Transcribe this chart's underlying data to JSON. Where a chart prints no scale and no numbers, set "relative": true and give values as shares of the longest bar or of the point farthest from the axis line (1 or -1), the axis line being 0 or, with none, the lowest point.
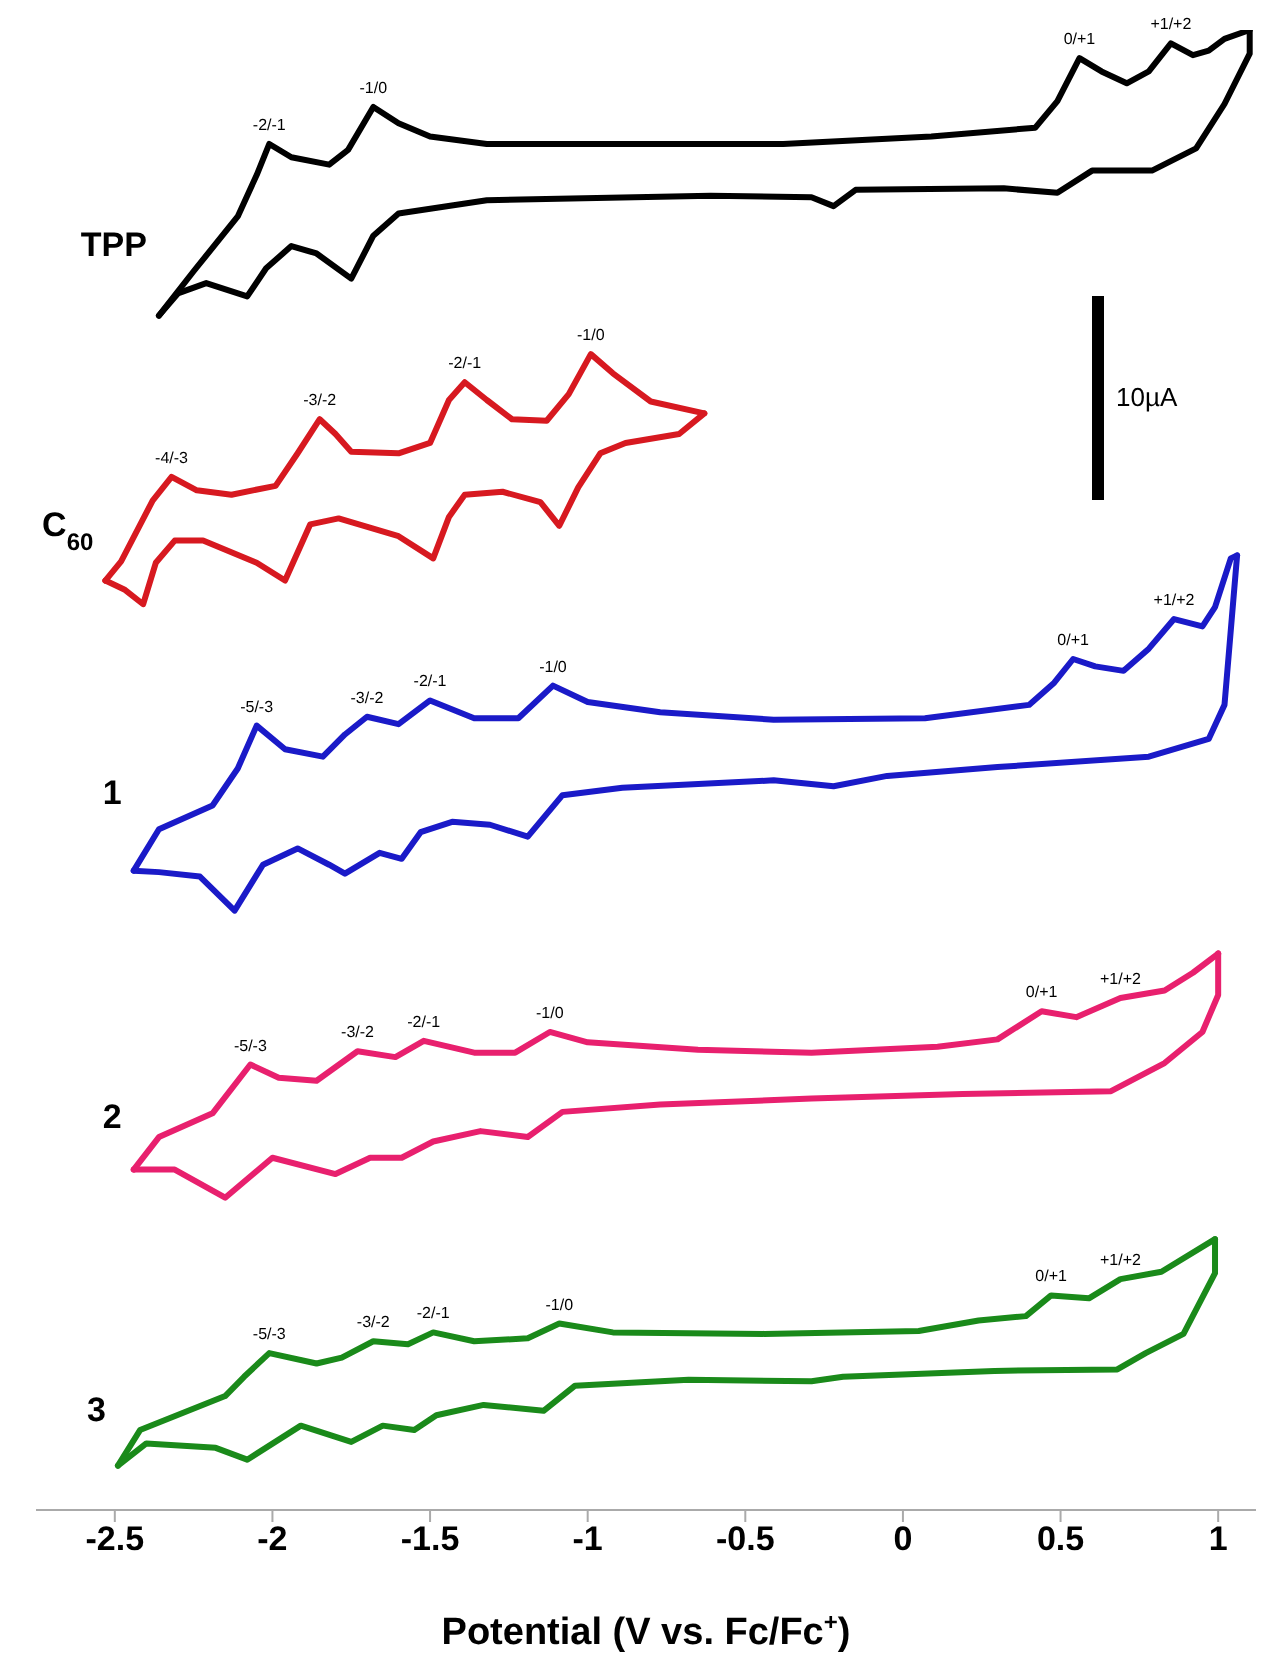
{
  "chart_data": {
    "type": "line",
    "xlabel": "Potential (V vs. Fc/Fc$^{+}$)",
    "relative": true,
    "xlim": [
      -2.75,
      1.12
    ],
    "xticks": [
      -2.5,
      -2,
      -1.5,
      -1,
      -0.5,
      0,
      0.5,
      1
    ],
    "grid": false,
    "legend": false,
    "marker": "none",
    "line_style": "solid",
    "series": [
      {
        "name": "TPP",
        "color": "#000000",
        "x": [
          -2.36,
          -2.25,
          -2.11,
          -2.05,
          -2.01,
          -1.94,
          -1.82,
          -1.76,
          -1.68,
          -1.6,
          -1.5,
          -1.32,
          -0.85,
          -0.38,
          0.09,
          0.42,
          0.49,
          0.56,
          0.63,
          0.71,
          0.78,
          0.85,
          0.92,
          0.97,
          1.02,
          1.1
        ],
        "values": [
          0.807,
          0.837,
          0.874,
          0.902,
          0.923,
          0.914,
          0.909,
          0.919,
          0.948,
          0.937,
          0.928,
          0.923,
          0.923,
          0.923,
          0.928,
          0.934,
          0.952,
          0.981,
          0.972,
          0.964,
          0.972,
          0.991,
          0.983,
          0.986,
          0.994,
          1.0
        ]
      },
      {
        "color": "#000000",
        "x": [
          1.1,
          1.1,
          1.02,
          0.93,
          0.79,
          0.6,
          0.49,
          0.32,
          -0.15,
          -0.22,
          -0.29,
          -0.61,
          -1.32,
          -1.6,
          -1.68,
          -1.75,
          -1.86,
          -1.94,
          -2.02,
          -2.08,
          -2.21,
          -2.3,
          -2.36
        ],
        "values": [
          1.0,
          0.984,
          0.95,
          0.92,
          0.905,
          0.905,
          0.89,
          0.893,
          0.892,
          0.881,
          0.887,
          0.888,
          0.885,
          0.876,
          0.861,
          0.832,
          0.849,
          0.854,
          0.839,
          0.82,
          0.829,
          0.822,
          0.807
        ]
      },
      {
        "name": "C$_{60}$",
        "color": "#d71920",
        "x": [
          -2.53,
          -2.48,
          -2.38,
          -2.32,
          -2.24,
          -2.13,
          -1.99,
          -1.92,
          -1.85,
          -1.8,
          -1.75,
          -1.6,
          -1.5,
          -1.44,
          -1.39,
          -1.32,
          -1.24,
          -1.13,
          -1.06,
          -0.99,
          -0.92,
          -0.8,
          -0.63
        ],
        "values": [
          0.628,
          0.641,
          0.682,
          0.698,
          0.689,
          0.686,
          0.692,
          0.714,
          0.737,
          0.727,
          0.715,
          0.714,
          0.721,
          0.75,
          0.762,
          0.75,
          0.737,
          0.736,
          0.754,
          0.781,
          0.768,
          0.749,
          0.741
        ]
      },
      {
        "color": "#d71920",
        "x": [
          -0.63,
          -0.71,
          -0.88,
          -0.96,
          -1.03,
          -1.09,
          -1.15,
          -1.27,
          -1.39,
          -1.44,
          -1.49,
          -1.6,
          -1.79,
          -1.88,
          -1.96,
          -2.05,
          -2.22,
          -2.31,
          -2.37,
          -2.41,
          -2.47,
          -2.53
        ],
        "values": [
          0.741,
          0.727,
          0.721,
          0.714,
          0.691,
          0.665,
          0.681,
          0.688,
          0.686,
          0.671,
          0.643,
          0.658,
          0.67,
          0.666,
          0.628,
          0.64,
          0.655,
          0.655,
          0.64,
          0.612,
          0.622,
          0.628
        ]
      },
      {
        "name": "1",
        "color": "#1a1ac8",
        "x": [
          -2.44,
          -2.36,
          -2.19,
          -2.11,
          -2.05,
          -1.96,
          -1.84,
          -1.77,
          -1.7,
          -1.6,
          -1.5,
          -1.36,
          -1.22,
          -1.11,
          -1.0,
          -0.77,
          -0.41,
          0.07,
          0.4,
          0.48,
          0.54,
          0.61,
          0.7,
          0.78,
          0.86,
          0.95,
          0.99,
          1.04,
          1.06
        ],
        "values": [
          0.432,
          0.46,
          0.476,
          0.501,
          0.53,
          0.514,
          0.509,
          0.524,
          0.536,
          0.531,
          0.547,
          0.535,
          0.535,
          0.557,
          0.546,
          0.539,
          0.534,
          0.535,
          0.544,
          0.559,
          0.575,
          0.57,
          0.567,
          0.582,
          0.602,
          0.597,
          0.61,
          0.643,
          0.645
        ]
      },
      {
        "color": "#1a1ac8",
        "x": [
          1.06,
          1.02,
          0.97,
          0.78,
          0.3,
          -0.05,
          -0.22,
          -0.41,
          -0.89,
          -1.08,
          -1.19,
          -1.31,
          -1.43,
          -1.53,
          -1.59,
          -1.66,
          -1.77,
          -1.82,
          -1.92,
          -2.03,
          -2.12,
          -2.23,
          -2.36,
          -2.44
        ],
        "values": [
          0.645,
          0.544,
          0.521,
          0.509,
          0.502,
          0.496,
          0.489,
          0.493,
          0.488,
          0.483,
          0.455,
          0.463,
          0.465,
          0.458,
          0.44,
          0.444,
          0.43,
          0.436,
          0.447,
          0.436,
          0.405,
          0.428,
          0.431,
          0.432
        ]
      },
      {
        "name": "2",
        "color": "#e8206e",
        "x": [
          -2.44,
          -2.36,
          -2.19,
          -2.07,
          -1.98,
          -1.86,
          -1.73,
          -1.61,
          -1.52,
          -1.36,
          -1.23,
          -1.12,
          -1.0,
          -0.65,
          -0.29,
          0.11,
          0.3,
          0.44,
          0.55,
          0.69,
          0.83,
          0.92,
          1.0
        ],
        "values": [
          0.23,
          0.252,
          0.268,
          0.301,
          0.292,
          0.29,
          0.31,
          0.306,
          0.317,
          0.309,
          0.309,
          0.323,
          0.316,
          0.311,
          0.309,
          0.313,
          0.318,
          0.337,
          0.333,
          0.346,
          0.351,
          0.363,
          0.376
        ]
      },
      {
        "color": "#e8206e",
        "x": [
          1.0,
          1.0,
          0.95,
          0.83,
          0.66,
          0.19,
          -0.29,
          -0.77,
          -1.08,
          -1.19,
          -1.34,
          -1.49,
          -1.59,
          -1.69,
          -1.8,
          -2.0,
          -2.15,
          -2.31,
          -2.44
        ],
        "values": [
          0.376,
          0.348,
          0.323,
          0.302,
          0.283,
          0.281,
          0.278,
          0.274,
          0.269,
          0.252,
          0.256,
          0.249,
          0.238,
          0.238,
          0.227,
          0.238,
          0.211,
          0.23,
          0.23
        ]
      },
      {
        "name": "3",
        "color": "#1a8a1a",
        "x": [
          -2.49,
          -2.42,
          -2.15,
          -2.09,
          -2.01,
          -1.86,
          -1.78,
          -1.68,
          -1.57,
          -1.49,
          -1.36,
          -1.19,
          -1.09,
          -0.92,
          -0.44,
          0.05,
          0.24,
          0.39,
          0.47,
          0.59,
          0.69,
          0.82,
          0.99
        ],
        "values": [
          0.03,
          0.054,
          0.077,
          0.09,
          0.106,
          0.099,
          0.103,
          0.114,
          0.112,
          0.12,
          0.114,
          0.116,
          0.126,
          0.12,
          0.119,
          0.121,
          0.128,
          0.131,
          0.145,
          0.143,
          0.156,
          0.161,
          0.183
        ]
      },
      {
        "color": "#1a8a1a",
        "x": [
          0.99,
          0.99,
          0.89,
          0.77,
          0.68,
          0.29,
          -0.19,
          -0.29,
          -0.68,
          -1.04,
          -1.14,
          -1.33,
          -1.48,
          -1.55,
          -1.65,
          -1.75,
          -1.91,
          -2.08,
          -2.18,
          -2.4,
          -2.49
        ],
        "values": [
          0.183,
          0.16,
          0.119,
          0.106,
          0.095,
          0.094,
          0.09,
          0.087,
          0.088,
          0.084,
          0.067,
          0.071,
          0.064,
          0.054,
          0.057,
          0.046,
          0.057,
          0.034,
          0.042,
          0.045,
          0.03
        ]
      }
    ],
    "annotations": [
      {
        "text": "-2/-1",
        "x": -2.01,
        "y": 0.923
      },
      {
        "text": "-1/0",
        "x": -1.68,
        "y": 0.948
      },
      {
        "text": "0/+1",
        "x": 0.56,
        "y": 0.981
      },
      {
        "text": "+1/+2",
        "x": 0.85,
        "y": 0.991
      },
      {
        "text": "-4/-3",
        "x": -2.32,
        "y": 0.698
      },
      {
        "text": "-3/-2",
        "x": -1.85,
        "y": 0.737
      },
      {
        "text": "-2/-1",
        "x": -1.39,
        "y": 0.762
      },
      {
        "text": "-1/0",
        "x": -0.99,
        "y": 0.781
      },
      {
        "text": "-5/-3",
        "x": -2.05,
        "y": 0.53
      },
      {
        "text": "-3/-2",
        "x": -1.7,
        "y": 0.536
      },
      {
        "text": "-2/-1",
        "x": -1.5,
        "y": 0.547
      },
      {
        "text": "-1/0",
        "x": -1.11,
        "y": 0.557
      },
      {
        "text": "0/+1",
        "x": 0.54,
        "y": 0.575
      },
      {
        "text": "+1/+2",
        "x": 0.86,
        "y": 0.602
      },
      {
        "text": "-5/-3",
        "x": -2.07,
        "y": 0.301
      },
      {
        "text": "-3/-2",
        "x": -1.73,
        "y": 0.31
      },
      {
        "text": "-2/-1",
        "x": -1.52,
        "y": 0.317
      },
      {
        "text": "-1/0",
        "x": -1.12,
        "y": 0.323
      },
      {
        "text": "0/+1",
        "x": 0.44,
        "y": 0.337
      },
      {
        "text": "+1/+2",
        "x": 0.69,
        "y": 0.346
      },
      {
        "text": "-5/-3",
        "x": -2.01,
        "y": 0.106
      },
      {
        "text": "-3/-2",
        "x": -1.68,
        "y": 0.114
      },
      {
        "text": "-2/-1",
        "x": -1.49,
        "y": 0.12
      },
      {
        "text": "-1/0",
        "x": -1.09,
        "y": 0.126
      },
      {
        "text": "0/+1",
        "x": 0.47,
        "y": 0.145
      },
      {
        "text": "+1/+2",
        "x": 0.69,
        "y": 0.156
      },
      "10µA"
    ]
  }
}
